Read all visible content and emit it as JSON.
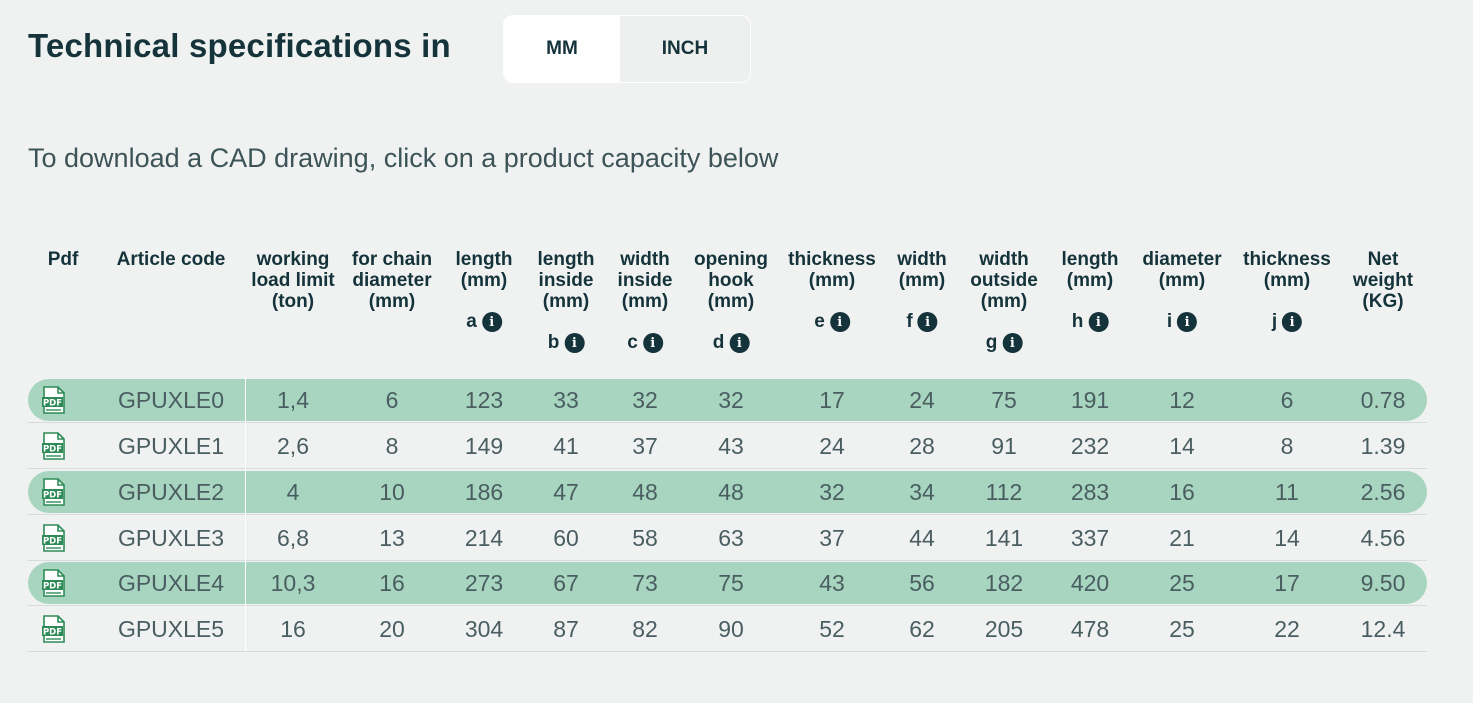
{
  "header": {
    "title": "Technical specifications in",
    "units": {
      "mm_label": "MM",
      "inch_label": "INCH",
      "active": "MM"
    }
  },
  "subtitle": "To download a CAD drawing, click on a product capacity below",
  "table": {
    "columns": [
      {
        "key": "pdf",
        "lines": [
          "Pdf"
        ],
        "letter": ""
      },
      {
        "key": "article",
        "lines": [
          "Article code"
        ],
        "letter": ""
      },
      {
        "key": "wll",
        "lines": [
          "working",
          "load limit",
          "(ton)"
        ],
        "letter": ""
      },
      {
        "key": "chain",
        "lines": [
          "for chain",
          "diameter",
          "(mm)"
        ],
        "letter": ""
      },
      {
        "key": "a",
        "lines": [
          "length",
          "(mm)"
        ],
        "letter": "a"
      },
      {
        "key": "b",
        "lines": [
          "length",
          "inside",
          "(mm)"
        ],
        "letter": "b"
      },
      {
        "key": "c",
        "lines": [
          "width",
          "inside",
          "(mm)"
        ],
        "letter": "c"
      },
      {
        "key": "d",
        "lines": [
          "opening",
          "hook",
          "(mm)"
        ],
        "letter": "d"
      },
      {
        "key": "e",
        "lines": [
          "thickness",
          "(mm)"
        ],
        "letter": "e"
      },
      {
        "key": "f",
        "lines": [
          "width",
          "(mm)"
        ],
        "letter": "f"
      },
      {
        "key": "g",
        "lines": [
          "width",
          "outside",
          "(mm)"
        ],
        "letter": "g"
      },
      {
        "key": "h",
        "lines": [
          "length",
          "(mm)"
        ],
        "letter": "h"
      },
      {
        "key": "i",
        "lines": [
          "diameter",
          "(mm)"
        ],
        "letter": "i"
      },
      {
        "key": "j",
        "lines": [
          "thickness",
          "(mm)"
        ],
        "letter": "j"
      },
      {
        "key": "weight",
        "lines": [
          "Net",
          "weight",
          "(KG)"
        ],
        "letter": ""
      }
    ],
    "info_icon_glyph": "i",
    "pdf_icon_text": "PDF",
    "rows": [
      {
        "code": "GPUXLE0",
        "values": [
          "1,4",
          "6",
          "123",
          "33",
          "32",
          "32",
          "17",
          "24",
          "75",
          "191",
          "12",
          "6",
          "0.78"
        ]
      },
      {
        "code": "GPUXLE1",
        "values": [
          "2,6",
          "8",
          "149",
          "41",
          "37",
          "43",
          "24",
          "28",
          "91",
          "232",
          "14",
          "8",
          "1.39"
        ]
      },
      {
        "code": "GPUXLE2",
        "values": [
          "4",
          "10",
          "186",
          "47",
          "48",
          "48",
          "32",
          "34",
          "112",
          "283",
          "16",
          "11",
          "2.56"
        ]
      },
      {
        "code": "GPUXLE3",
        "values": [
          "6,8",
          "13",
          "214",
          "60",
          "58",
          "63",
          "37",
          "44",
          "141",
          "337",
          "21",
          "14",
          "4.56"
        ]
      },
      {
        "code": "GPUXLE4",
        "values": [
          "10,3",
          "16",
          "273",
          "67",
          "73",
          "75",
          "43",
          "56",
          "182",
          "420",
          "25",
          "17",
          "9.50"
        ]
      },
      {
        "code": "GPUXLE5",
        "values": [
          "16",
          "20",
          "304",
          "87",
          "82",
          "90",
          "52",
          "62",
          "205",
          "478",
          "25",
          "22",
          "12.4"
        ]
      }
    ]
  },
  "colors": {
    "background": "#f0f2f1",
    "row_highlight": "#a8d5bf",
    "heading": "#15333a",
    "pdf_green": "#2e8b57"
  }
}
